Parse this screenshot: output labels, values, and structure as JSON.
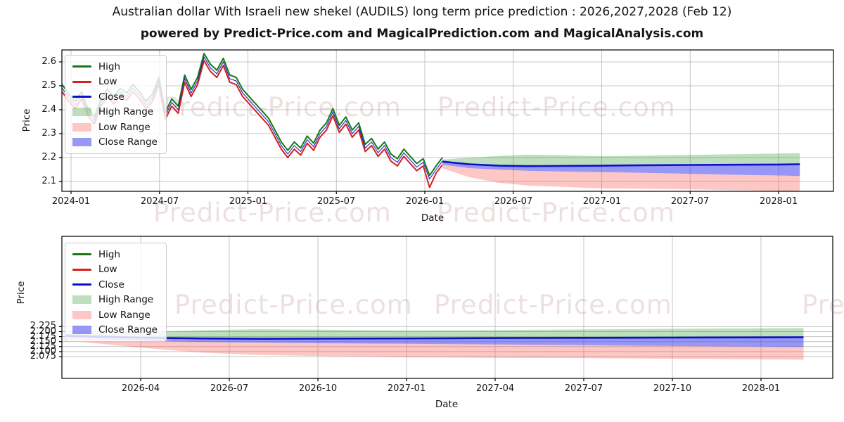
{
  "title": "Australian dollar With Israeli new shekel (AUDILS) long term price prediction : 2026,2027,2028 (Feb 12)",
  "subtitle": "powered by Predict-Price.com and MagicalPrediction.com and MagicalAnalysis.com",
  "watermark_text": "Predict-Price.com",
  "colors": {
    "high_line": "#157a15",
    "low_line": "#d62020",
    "close_line": "#0e0ecf",
    "high_band": "rgba(40,150,40,0.30)",
    "low_band": "rgba(250,80,75,0.32)",
    "close_band": "rgba(55,55,235,0.52)",
    "grid": "#c4c4c4",
    "frame": "#000000"
  },
  "legend": {
    "items": [
      {
        "label": "High",
        "type": "line",
        "color": "#157a15"
      },
      {
        "label": "Low",
        "type": "line",
        "color": "#d62020"
      },
      {
        "label": "Close",
        "type": "line",
        "color": "#0e0ecf"
      },
      {
        "label": "High Range",
        "type": "patch",
        "color": "rgba(40,150,40,0.30)"
      },
      {
        "label": "Low Range",
        "type": "patch",
        "color": "rgba(250,80,75,0.32)"
      },
      {
        "label": "Close Range",
        "type": "patch",
        "color": "rgba(55,55,235,0.52)"
      }
    ]
  },
  "chart_data": [
    {
      "type": "line",
      "name": "long-term-history-and-forecast",
      "xlabel": "Date",
      "ylabel": "Price",
      "grid": true,
      "legend_position": "upper left",
      "ylim": [
        2.059,
        2.65
      ],
      "yticks": [
        {
          "label": "2.6",
          "value": 2.6
        },
        {
          "label": "2.5",
          "value": 2.5
        },
        {
          "label": "2.4",
          "value": 2.4
        },
        {
          "label": "2.3",
          "value": 2.3
        },
        {
          "label": "2.2",
          "value": 2.2
        },
        {
          "label": "2.1",
          "value": 2.1
        }
      ],
      "xticks": [
        {
          "label": "2024-01",
          "year": 2024.0
        },
        {
          "label": "2024-07",
          "year": 2024.5
        },
        {
          "label": "2025-01",
          "year": 2025.0
        },
        {
          "label": "2025-07",
          "year": 2025.5
        },
        {
          "label": "2026-01",
          "year": 2026.0
        },
        {
          "label": "2026-07",
          "year": 2026.5
        },
        {
          "label": "2027-01",
          "year": 2027.0
        },
        {
          "label": "2027-07",
          "year": 2027.5
        },
        {
          "label": "2028-01",
          "year": 2028.0
        }
      ],
      "history": {
        "x_start_year": 2023.95,
        "x_end_year": 2026.1,
        "high": [
          2.505,
          2.465,
          2.435,
          2.475,
          2.405,
          2.37,
          2.445,
          2.485,
          2.455,
          2.49,
          2.47,
          2.505,
          2.475,
          2.435,
          2.465,
          2.535,
          2.39,
          2.445,
          2.415,
          2.545,
          2.485,
          2.535,
          2.635,
          2.59,
          2.565,
          2.615,
          2.545,
          2.535,
          2.485,
          2.455,
          2.425,
          2.395,
          2.365,
          2.315,
          2.265,
          2.23,
          2.265,
          2.24,
          2.29,
          2.26,
          2.315,
          2.345,
          2.405,
          2.335,
          2.37,
          2.315,
          2.345,
          2.255,
          2.28,
          2.235,
          2.265,
          2.215,
          2.195,
          2.235,
          2.205,
          2.175,
          2.195,
          2.125,
          2.165,
          2.2
        ],
        "low": [
          2.475,
          2.435,
          2.405,
          2.445,
          2.375,
          2.34,
          2.415,
          2.455,
          2.425,
          2.46,
          2.44,
          2.475,
          2.445,
          2.405,
          2.435,
          2.505,
          2.36,
          2.415,
          2.385,
          2.515,
          2.455,
          2.505,
          2.605,
          2.56,
          2.535,
          2.585,
          2.515,
          2.505,
          2.455,
          2.425,
          2.395,
          2.365,
          2.335,
          2.285,
          2.235,
          2.2,
          2.235,
          2.21,
          2.26,
          2.23,
          2.285,
          2.315,
          2.375,
          2.305,
          2.34,
          2.285,
          2.315,
          2.225,
          2.25,
          2.205,
          2.235,
          2.185,
          2.165,
          2.205,
          2.175,
          2.145,
          2.165,
          2.075,
          2.135,
          2.17
        ],
        "close": [
          2.49,
          2.45,
          2.42,
          2.46,
          2.39,
          2.355,
          2.43,
          2.47,
          2.44,
          2.475,
          2.455,
          2.49,
          2.46,
          2.42,
          2.45,
          2.52,
          2.375,
          2.43,
          2.4,
          2.53,
          2.47,
          2.52,
          2.62,
          2.575,
          2.55,
          2.6,
          2.53,
          2.52,
          2.47,
          2.44,
          2.41,
          2.38,
          2.35,
          2.3,
          2.25,
          2.215,
          2.25,
          2.225,
          2.275,
          2.245,
          2.3,
          2.33,
          2.39,
          2.32,
          2.355,
          2.3,
          2.33,
          2.24,
          2.265,
          2.22,
          2.25,
          2.2,
          2.18,
          2.22,
          2.19,
          2.16,
          2.18,
          2.11,
          2.15,
          2.185
        ]
      },
      "forecast": {
        "x_years": [
          2026.1,
          2026.25,
          2026.42,
          2026.58,
          2026.75,
          2027.0,
          2027.25,
          2027.5,
          2027.75,
          2028.0,
          2028.12
        ],
        "close": [
          2.183,
          2.172,
          2.166,
          2.164,
          2.165,
          2.166,
          2.168,
          2.169,
          2.17,
          2.171,
          2.172
        ],
        "close_upper": [
          2.188,
          2.174,
          2.167,
          2.165,
          2.166,
          2.167,
          2.169,
          2.17,
          2.171,
          2.172,
          2.173
        ],
        "close_lower": [
          2.17,
          2.156,
          2.149,
          2.145,
          2.142,
          2.139,
          2.136,
          2.132,
          2.128,
          2.125,
          2.123
        ],
        "high_upper": [
          2.192,
          2.199,
          2.207,
          2.212,
          2.21,
          2.206,
          2.208,
          2.211,
          2.214,
          2.217,
          2.218
        ],
        "low_lower": [
          2.155,
          2.118,
          2.094,
          2.083,
          2.078,
          2.071,
          2.069,
          2.067,
          2.064,
          2.061,
          2.059
        ]
      }
    },
    {
      "type": "line",
      "name": "forecast-zoom-2026-2028",
      "xlabel": "Date",
      "ylabel": "Price",
      "grid": true,
      "legend_position": "upper left",
      "ylim": [
        2.048,
        2.226
      ],
      "yticks": [
        {
          "label": "2.225",
          "value": 2.225
        },
        {
          "label": "2.200",
          "value": 2.2
        },
        {
          "label": "2.175",
          "value": 2.175
        },
        {
          "label": "2.150",
          "value": 2.15
        },
        {
          "label": "2.125",
          "value": 2.125
        },
        {
          "label": "2.100",
          "value": 2.1
        },
        {
          "label": "2.075",
          "value": 2.075
        }
      ],
      "xticks": [
        {
          "label": "2026-04",
          "year": 2026.25
        },
        {
          "label": "2026-07",
          "year": 2026.5
        },
        {
          "label": "2026-10",
          "year": 2026.75
        },
        {
          "label": "2027-01",
          "year": 2027.0
        },
        {
          "label": "2027-04",
          "year": 2027.25
        },
        {
          "label": "2027-07",
          "year": 2027.5
        },
        {
          "label": "2027-10",
          "year": 2027.75
        },
        {
          "label": "2028-01",
          "year": 2028.0
        }
      ],
      "forecast": {
        "x_years": [
          2026.04,
          2026.25,
          2026.42,
          2026.58,
          2026.75,
          2027.0,
          2027.25,
          2027.5,
          2027.75,
          2028.0,
          2028.12
        ],
        "close": [
          2.179,
          2.17,
          2.166,
          2.164,
          2.165,
          2.166,
          2.168,
          2.169,
          2.17,
          2.171,
          2.172
        ],
        "close_upper": [
          2.188,
          2.172,
          2.167,
          2.165,
          2.166,
          2.167,
          2.169,
          2.17,
          2.171,
          2.172,
          2.173
        ],
        "close_lower": [
          2.171,
          2.155,
          2.148,
          2.145,
          2.142,
          2.139,
          2.136,
          2.132,
          2.128,
          2.125,
          2.123
        ],
        "high_upper": [
          2.192,
          2.198,
          2.207,
          2.212,
          2.21,
          2.206,
          2.208,
          2.211,
          2.214,
          2.217,
          2.218
        ],
        "low_lower": [
          2.156,
          2.12,
          2.095,
          2.083,
          2.078,
          2.071,
          2.069,
          2.067,
          2.064,
          2.061,
          2.059
        ]
      }
    }
  ]
}
